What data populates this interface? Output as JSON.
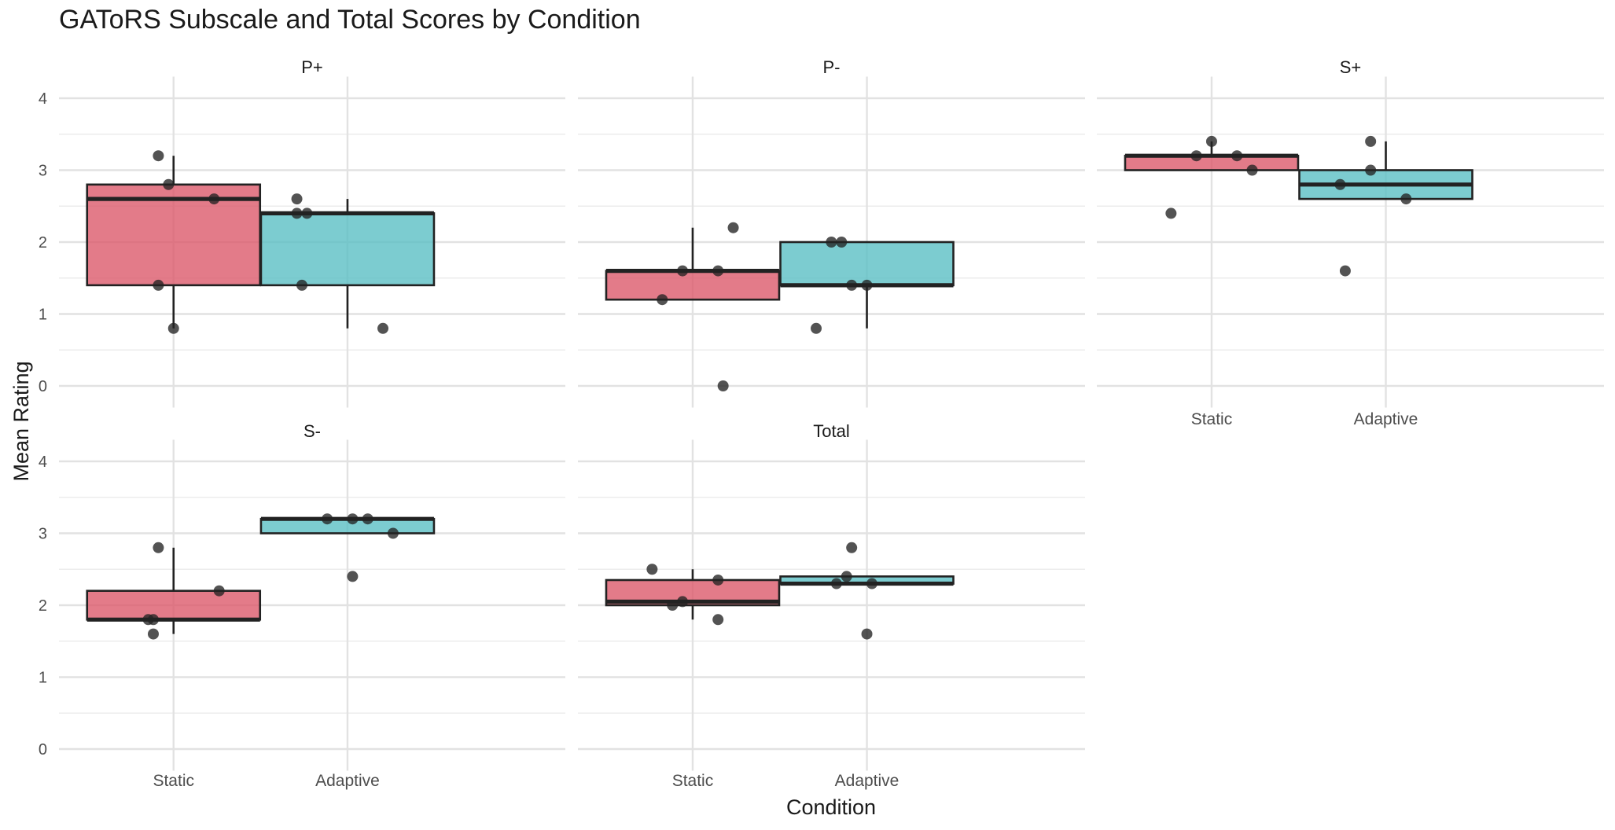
{
  "chart_data": {
    "type": "box",
    "title": "GAToRS Subscale and Total Scores by Condition",
    "xlabel": "Condition",
    "ylabel": "Mean Rating",
    "ylim": [
      -0.3,
      4.3
    ],
    "yticks": [
      0,
      1,
      2,
      3,
      4
    ],
    "grid": true,
    "legend": "none",
    "categories": [
      "Static",
      "Adaptive"
    ],
    "colors": {
      "Static": "#DC5A6B",
      "Adaptive": "#5BBFC4"
    },
    "facets": [
      {
        "label": "P+",
        "boxes": [
          {
            "category": "Static",
            "q1": 1.4,
            "median": 2.6,
            "q3": 2.8,
            "whisker_low": 0.8,
            "whisker_high": 3.2,
            "points": [
              {
                "x": -0.03,
                "y": 3.2
              },
              {
                "x": -0.01,
                "y": 2.8
              },
              {
                "x": 0.08,
                "y": 2.6
              },
              {
                "x": -0.03,
                "y": 1.4
              },
              {
                "x": 0.0,
                "y": 0.8
              }
            ]
          },
          {
            "category": "Adaptive",
            "q1": 1.4,
            "median": 2.4,
            "q3": 2.4,
            "whisker_low": 0.8,
            "whisker_high": 2.6,
            "points": [
              {
                "x": -0.1,
                "y": 2.6
              },
              {
                "x": -0.1,
                "y": 2.4
              },
              {
                "x": -0.08,
                "y": 2.4
              },
              {
                "x": -0.09,
                "y": 1.4
              },
              {
                "x": 0.07,
                "y": 0.8
              }
            ]
          }
        ]
      },
      {
        "label": "P-",
        "boxes": [
          {
            "category": "Static",
            "q1": 1.2,
            "median": 1.6,
            "q3": 1.6,
            "whisker_low": 1.2,
            "whisker_high": 2.2,
            "points": [
              {
                "x": 0.08,
                "y": 2.2
              },
              {
                "x": -0.02,
                "y": 1.6
              },
              {
                "x": 0.05,
                "y": 1.6
              },
              {
                "x": -0.06,
                "y": 1.2
              },
              {
                "x": 0.06,
                "y": 0.0
              }
            ]
          },
          {
            "category": "Adaptive",
            "q1": 1.4,
            "median": 1.4,
            "q3": 2.0,
            "whisker_low": 0.8,
            "whisker_high": 2.0,
            "points": [
              {
                "x": -0.07,
                "y": 2.0
              },
              {
                "x": -0.05,
                "y": 2.0
              },
              {
                "x": -0.03,
                "y": 1.4
              },
              {
                "x": 0.0,
                "y": 1.4
              },
              {
                "x": -0.1,
                "y": 0.8
              }
            ]
          }
        ]
      },
      {
        "label": "S+",
        "boxes": [
          {
            "category": "Static",
            "q1": 3.0,
            "median": 3.2,
            "q3": 3.2,
            "whisker_low": 3.0,
            "whisker_high": 3.4,
            "points": [
              {
                "x": 0.0,
                "y": 3.4
              },
              {
                "x": -0.03,
                "y": 3.2
              },
              {
                "x": 0.05,
                "y": 3.2
              },
              {
                "x": 0.08,
                "y": 3.0
              },
              {
                "x": -0.08,
                "y": 2.4
              }
            ]
          },
          {
            "category": "Adaptive",
            "q1": 2.6,
            "median": 2.8,
            "q3": 3.0,
            "whisker_low": 2.6,
            "whisker_high": 3.4,
            "points": [
              {
                "x": -0.03,
                "y": 3.4
              },
              {
                "x": -0.03,
                "y": 3.0
              },
              {
                "x": -0.09,
                "y": 2.8
              },
              {
                "x": 0.04,
                "y": 2.6
              },
              {
                "x": -0.08,
                "y": 1.6
              }
            ]
          }
        ]
      },
      {
        "label": "S-",
        "boxes": [
          {
            "category": "Static",
            "q1": 1.8,
            "median": 1.8,
            "q3": 2.2,
            "whisker_low": 1.6,
            "whisker_high": 2.8,
            "points": [
              {
                "x": -0.03,
                "y": 2.8
              },
              {
                "x": 0.09,
                "y": 2.2
              },
              {
                "x": -0.05,
                "y": 1.8
              },
              {
                "x": -0.04,
                "y": 1.8
              },
              {
                "x": -0.04,
                "y": 1.6
              }
            ]
          },
          {
            "category": "Adaptive",
            "q1": 3.0,
            "median": 3.2,
            "q3": 3.2,
            "whisker_low": 3.0,
            "whisker_high": 3.2,
            "points": [
              {
                "x": -0.04,
                "y": 3.2
              },
              {
                "x": 0.01,
                "y": 3.2
              },
              {
                "x": 0.04,
                "y": 3.2
              },
              {
                "x": 0.09,
                "y": 3.0
              },
              {
                "x": 0.01,
                "y": 2.4
              }
            ]
          }
        ]
      },
      {
        "label": "Total",
        "boxes": [
          {
            "category": "Static",
            "q1": 2.0,
            "median": 2.05,
            "q3": 2.35,
            "whisker_low": 1.8,
            "whisker_high": 2.5,
            "points": [
              {
                "x": -0.08,
                "y": 2.5
              },
              {
                "x": 0.05,
                "y": 2.35
              },
              {
                "x": -0.02,
                "y": 2.05
              },
              {
                "x": -0.04,
                "y": 2.0
              },
              {
                "x": 0.05,
                "y": 1.8
              }
            ]
          },
          {
            "category": "Adaptive",
            "q1": 2.3,
            "median": 2.3,
            "q3": 2.4,
            "whisker_low": 2.3,
            "whisker_high": 2.4,
            "points": [
              {
                "x": -0.03,
                "y": 2.8
              },
              {
                "x": -0.04,
                "y": 2.4
              },
              {
                "x": -0.06,
                "y": 2.3
              },
              {
                "x": 0.01,
                "y": 2.3
              },
              {
                "x": 0.0,
                "y": 1.6
              }
            ]
          }
        ]
      }
    ]
  }
}
